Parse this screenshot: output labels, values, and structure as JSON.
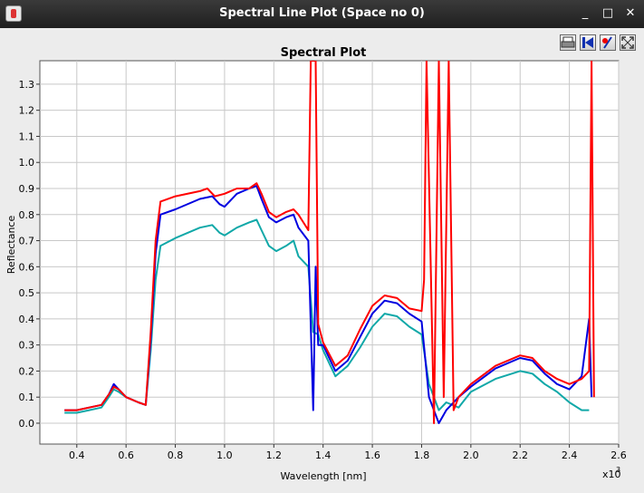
{
  "window": {
    "title": "Spectral Line Plot (Space no 0)",
    "minimize_label": "_",
    "maximize_label": "□",
    "close_label": "✕"
  },
  "toolbar": [
    {
      "name": "print-button",
      "icon": "printer-icon"
    },
    {
      "name": "first-button",
      "icon": "arrow-left-icon"
    },
    {
      "name": "marker-button",
      "icon": "marker-icon"
    },
    {
      "name": "zoom-fit-button",
      "icon": "expand-icon"
    }
  ],
  "chart_data": {
    "type": "line",
    "title": "Spectral Plot",
    "xlabel": "Wavelength [nm]",
    "ylabel": "Reflectance",
    "x_multiplier": "x10",
    "x_multiplier_exp": "3",
    "xlim": [
      0.25,
      2.6
    ],
    "ylim": [
      -0.08,
      1.39
    ],
    "xticks": [
      0.4,
      0.6,
      0.8,
      1.0,
      1.2,
      1.4,
      1.6,
      1.8,
      2.0,
      2.2,
      2.4,
      2.6
    ],
    "xtick_labels": [
      "0.4",
      "0.6",
      "0.8",
      "1.0",
      "1.2",
      "1.4",
      "1.6",
      "1.8",
      "2.0",
      "2.2",
      "2.4",
      "2.6"
    ],
    "yticks": [
      0.0,
      0.1,
      0.2,
      0.3,
      0.4,
      0.5,
      0.6,
      0.7,
      0.8,
      0.9,
      1.0,
      1.1,
      1.2,
      1.3
    ],
    "ytick_labels": [
      "0.0",
      "0.1",
      "0.2",
      "0.3",
      "0.4",
      "0.5",
      "0.6",
      "0.7",
      "0.8",
      "0.9",
      "1.0",
      "1.1",
      "1.2",
      "1.3"
    ],
    "grid": true,
    "series": [
      {
        "color": "#10a8a8",
        "points": [
          [
            0.35,
            0.04
          ],
          [
            0.4,
            0.04
          ],
          [
            0.45,
            0.05
          ],
          [
            0.5,
            0.06
          ],
          [
            0.53,
            0.1
          ],
          [
            0.55,
            0.13
          ],
          [
            0.57,
            0.12
          ],
          [
            0.6,
            0.1
          ],
          [
            0.65,
            0.08
          ],
          [
            0.68,
            0.07
          ],
          [
            0.7,
            0.28
          ],
          [
            0.72,
            0.55
          ],
          [
            0.74,
            0.68
          ],
          [
            0.8,
            0.71
          ],
          [
            0.9,
            0.75
          ],
          [
            0.95,
            0.76
          ],
          [
            0.98,
            0.73
          ],
          [
            1.0,
            0.72
          ],
          [
            1.05,
            0.75
          ],
          [
            1.1,
            0.77
          ],
          [
            1.13,
            0.78
          ],
          [
            1.15,
            0.74
          ],
          [
            1.18,
            0.68
          ],
          [
            1.21,
            0.66
          ],
          [
            1.25,
            0.68
          ],
          [
            1.28,
            0.7
          ],
          [
            1.3,
            0.64
          ],
          [
            1.34,
            0.6
          ],
          [
            1.36,
            0.35
          ],
          [
            1.38,
            0.34
          ],
          [
            1.4,
            0.28
          ],
          [
            1.45,
            0.18
          ],
          [
            1.5,
            0.22
          ],
          [
            1.55,
            0.29
          ],
          [
            1.6,
            0.37
          ],
          [
            1.65,
            0.42
          ],
          [
            1.7,
            0.41
          ],
          [
            1.75,
            0.37
          ],
          [
            1.8,
            0.34
          ],
          [
            1.83,
            0.15
          ],
          [
            1.87,
            0.05
          ],
          [
            1.9,
            0.08
          ],
          [
            1.95,
            0.06
          ],
          [
            2.0,
            0.12
          ],
          [
            2.1,
            0.17
          ],
          [
            2.2,
            0.2
          ],
          [
            2.25,
            0.19
          ],
          [
            2.3,
            0.15
          ],
          [
            2.35,
            0.12
          ],
          [
            2.4,
            0.08
          ],
          [
            2.45,
            0.05
          ],
          [
            2.48,
            0.05
          ]
        ]
      },
      {
        "color": "#0000e0",
        "points": [
          [
            0.35,
            0.05
          ],
          [
            0.4,
            0.05
          ],
          [
            0.45,
            0.06
          ],
          [
            0.5,
            0.07
          ],
          [
            0.53,
            0.11
          ],
          [
            0.55,
            0.15
          ],
          [
            0.57,
            0.13
          ],
          [
            0.6,
            0.1
          ],
          [
            0.65,
            0.08
          ],
          [
            0.68,
            0.07
          ],
          [
            0.7,
            0.32
          ],
          [
            0.72,
            0.65
          ],
          [
            0.74,
            0.8
          ],
          [
            0.8,
            0.82
          ],
          [
            0.9,
            0.86
          ],
          [
            0.95,
            0.87
          ],
          [
            0.98,
            0.84
          ],
          [
            1.0,
            0.83
          ],
          [
            1.05,
            0.88
          ],
          [
            1.1,
            0.9
          ],
          [
            1.13,
            0.91
          ],
          [
            1.15,
            0.86
          ],
          [
            1.18,
            0.79
          ],
          [
            1.21,
            0.77
          ],
          [
            1.25,
            0.79
          ],
          [
            1.28,
            0.8
          ],
          [
            1.3,
            0.75
          ],
          [
            1.34,
            0.7
          ],
          [
            1.36,
            0.05
          ],
          [
            1.37,
            0.6
          ],
          [
            1.38,
            0.3
          ],
          [
            1.4,
            0.3
          ],
          [
            1.45,
            0.2
          ],
          [
            1.5,
            0.24
          ],
          [
            1.55,
            0.33
          ],
          [
            1.6,
            0.42
          ],
          [
            1.65,
            0.47
          ],
          [
            1.7,
            0.46
          ],
          [
            1.75,
            0.42
          ],
          [
            1.8,
            0.39
          ],
          [
            1.83,
            0.1
          ],
          [
            1.87,
            0.0
          ],
          [
            1.9,
            0.05
          ],
          [
            1.95,
            0.1
          ],
          [
            2.0,
            0.14
          ],
          [
            2.1,
            0.21
          ],
          [
            2.2,
            0.25
          ],
          [
            2.25,
            0.24
          ],
          [
            2.3,
            0.19
          ],
          [
            2.35,
            0.15
          ],
          [
            2.4,
            0.13
          ],
          [
            2.45,
            0.18
          ],
          [
            2.48,
            0.4
          ],
          [
            2.49,
            0.1
          ]
        ]
      },
      {
        "color": "#ff0000",
        "points": [
          [
            0.35,
            0.05
          ],
          [
            0.4,
            0.05
          ],
          [
            0.45,
            0.06
          ],
          [
            0.5,
            0.07
          ],
          [
            0.53,
            0.11
          ],
          [
            0.55,
            0.14
          ],
          [
            0.57,
            0.13
          ],
          [
            0.6,
            0.1
          ],
          [
            0.65,
            0.08
          ],
          [
            0.68,
            0.07
          ],
          [
            0.7,
            0.35
          ],
          [
            0.72,
            0.7
          ],
          [
            0.74,
            0.85
          ],
          [
            0.8,
            0.87
          ],
          [
            0.9,
            0.89
          ],
          [
            0.93,
            0.9
          ],
          [
            0.96,
            0.87
          ],
          [
            1.0,
            0.88
          ],
          [
            1.05,
            0.9
          ],
          [
            1.1,
            0.9
          ],
          [
            1.13,
            0.92
          ],
          [
            1.15,
            0.88
          ],
          [
            1.18,
            0.81
          ],
          [
            1.21,
            0.79
          ],
          [
            1.25,
            0.81
          ],
          [
            1.28,
            0.82
          ],
          [
            1.3,
            0.8
          ],
          [
            1.34,
            0.74
          ],
          [
            1.35,
            1.39
          ],
          [
            1.37,
            1.39
          ],
          [
            1.38,
            0.38
          ],
          [
            1.4,
            0.31
          ],
          [
            1.45,
            0.22
          ],
          [
            1.5,
            0.26
          ],
          [
            1.55,
            0.36
          ],
          [
            1.6,
            0.45
          ],
          [
            1.65,
            0.49
          ],
          [
            1.7,
            0.48
          ],
          [
            1.75,
            0.44
          ],
          [
            1.8,
            0.43
          ],
          [
            1.81,
            0.55
          ],
          [
            1.82,
            1.39
          ],
          [
            1.85,
            0.0
          ],
          [
            1.87,
            1.39
          ],
          [
            1.89,
            0.1
          ],
          [
            1.91,
            1.39
          ],
          [
            1.93,
            0.05
          ],
          [
            1.95,
            0.1
          ],
          [
            2.0,
            0.15
          ],
          [
            2.1,
            0.22
          ],
          [
            2.2,
            0.26
          ],
          [
            2.25,
            0.25
          ],
          [
            2.3,
            0.2
          ],
          [
            2.35,
            0.17
          ],
          [
            2.4,
            0.15
          ],
          [
            2.45,
            0.17
          ],
          [
            2.48,
            0.2
          ],
          [
            2.49,
            1.39
          ],
          [
            2.5,
            0.1
          ]
        ]
      }
    ]
  }
}
